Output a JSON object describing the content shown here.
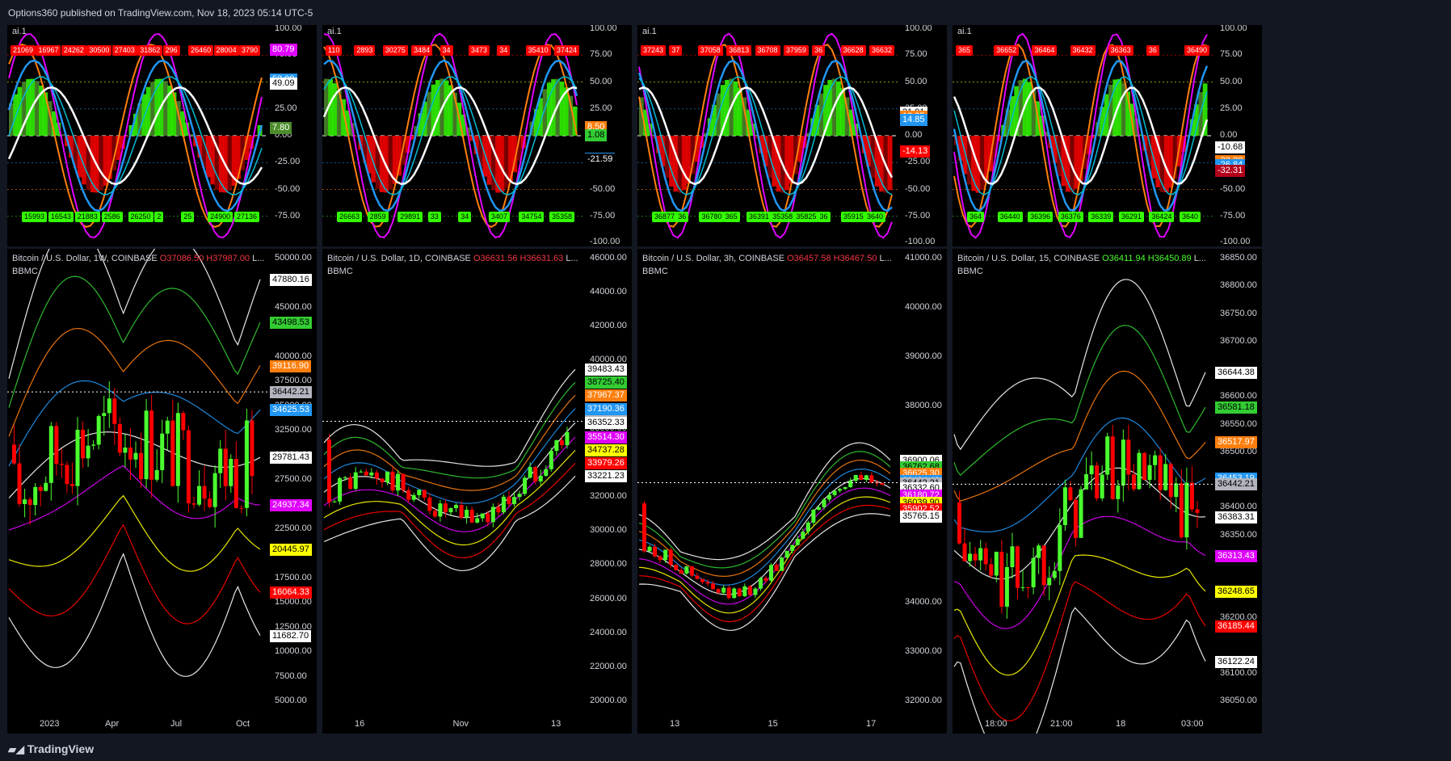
{
  "header": {
    "published": "Options360 published on TradingView.com, Nov 18, 2023 05:14 UTC-5"
  },
  "footer": {
    "logo": "TradingView"
  },
  "colors": {
    "bg": "#000000",
    "frame": "#131722",
    "up": "#4bff2e",
    "down": "#ff0000",
    "white": "#ffffff",
    "blue": "#2196f3",
    "orange": "#ff7f0e",
    "magenta": "#e000ff",
    "yellow": "#ffff00",
    "green": "#33cc33"
  },
  "panels": [
    {
      "osc_title": "ai.1",
      "sym": "Bitcoin / U.S. Dollar, 1W, COINBASE",
      "o": "O37086.50",
      "h": "H37987.00",
      "rest": "L...",
      "up": false,
      "indicator": "BBMC",
      "osc_axis": [
        "100.00",
        "75.00",
        "50.00",
        "25.00",
        "0.00",
        "-25.00",
        "-50.00",
        "-75.00"
      ],
      "osc_tags": [
        {
          "v": "80.79",
          "c": "#e000ff",
          "tc": "#fff"
        },
        {
          "v": "52.99",
          "c": "#2196f3",
          "tc": "#fff"
        },
        {
          "v": "49.09",
          "c": "#ffffff",
          "tc": "#000"
        },
        {
          "v": "7.80",
          "c": "#4c8c2b",
          "tc": "#fff"
        }
      ],
      "top_labels": [
        "21069",
        "16967",
        "24262",
        "30500",
        "27403",
        "31862",
        "296",
        "26460",
        "28004",
        "3790"
      ],
      "bot_labels": [
        "15993",
        "16543",
        "21883",
        "2586",
        "26250",
        "2",
        "25",
        "24900",
        "27136"
      ],
      "price_axis": [
        "50000.00",
        "45000.00",
        "40000.00",
        "37500.00",
        "35000.00",
        "32500.00",
        "30000.00",
        "27500.00",
        "25000.00",
        "22500.00",
        "20000.00",
        "17500.00",
        "15000.00",
        "12500.00",
        "10000.00",
        "7500.00",
        "5000.00"
      ],
      "price_tags": [
        {
          "v": "47880.16",
          "c": "#ffffff",
          "tc": "#000"
        },
        {
          "v": "43498.53",
          "c": "#33cc33",
          "tc": "#000"
        },
        {
          "v": "39116.90",
          "c": "#ff7f0e",
          "tc": "#fff"
        },
        {
          "v": "36442.21",
          "c": "#b2b5be",
          "tc": "#000"
        },
        {
          "v": "34625.53",
          "c": "#2196f3",
          "tc": "#fff"
        },
        {
          "v": "29781.43",
          "c": "#ffffff",
          "tc": "#000"
        },
        {
          "v": "24937.34",
          "c": "#e000ff",
          "tc": "#fff"
        },
        {
          "v": "20445.97",
          "c": "#ffff00",
          "tc": "#000"
        },
        {
          "v": "16064.33",
          "c": "#ff0000",
          "tc": "#fff"
        },
        {
          "v": "11682.70",
          "c": "#ffffff",
          "tc": "#000"
        }
      ],
      "x_axis": [
        "2023",
        "Apr",
        "Jul",
        "Oct"
      ]
    },
    {
      "osc_title": "ai.1",
      "sym": "Bitcoin / U.S. Dollar, 1D, COINBASE",
      "o": "O36631.56",
      "h": "H36631.63",
      "rest": "L...",
      "up": false,
      "indicator": "BBMC",
      "osc_axis": [
        "100.00",
        "75.00",
        "50.00",
        "25.00",
        "0.00",
        "-25.00",
        "-50.00",
        "-75.00",
        "-100.00"
      ],
      "osc_tags": [
        {
          "v": "8.50",
          "c": "#ff7f0e",
          "tc": "#fff"
        },
        {
          "v": "1.08",
          "c": "#33cc33",
          "tc": "#000"
        },
        {
          "v": "-21.05",
          "c": "#2196f3",
          "tc": "#fff"
        },
        {
          "v": "-21.59",
          "c": "#000000",
          "tc": "#fff"
        }
      ],
      "top_labels": [
        "110",
        "2893",
        "30275",
        "3484",
        "34",
        "3473",
        "34",
        "35410",
        "37424"
      ],
      "bot_labels": [
        "26663",
        "2859",
        "29891",
        "33",
        "34",
        "3407",
        "34754",
        "35358"
      ],
      "price_axis": [
        "46000.00",
        "44000.00",
        "42000.00",
        "40000.00",
        "38000.00",
        "36000.00",
        "32000.00",
        "30000.00",
        "28000.00",
        "26000.00",
        "24000.00",
        "22000.00",
        "20000.00"
      ],
      "price_tags": [
        {
          "v": "39483.43",
          "c": "#ffffff",
          "tc": "#000"
        },
        {
          "v": "38725.40",
          "c": "#33cc33",
          "tc": "#000"
        },
        {
          "v": "37967.37",
          "c": "#ff7f0e",
          "tc": "#fff"
        },
        {
          "v": "37190.36",
          "c": "#2196f3",
          "tc": "#fff"
        },
        {
          "v": "36442.21",
          "c": "#b2b5be",
          "tc": "#000"
        },
        {
          "v": "36352.33",
          "c": "#ffffff",
          "tc": "#000"
        },
        {
          "v": "35514.30",
          "c": "#e000ff",
          "tc": "#fff"
        },
        {
          "v": "34737.28",
          "c": "#ffff00",
          "tc": "#000"
        },
        {
          "v": "33979.26",
          "c": "#ff0000",
          "tc": "#fff"
        },
        {
          "v": "33221.23",
          "c": "#ffffff",
          "tc": "#000"
        }
      ],
      "x_axis": [
        "16",
        "Nov",
        "13"
      ]
    },
    {
      "osc_title": "ai.1",
      "sym": "Bitcoin / U.S. Dollar, 3h, COINBASE",
      "o": "O36457.58",
      "h": "H36467.50",
      "rest": "L...",
      "up": false,
      "indicator": "BBMC",
      "osc_axis": [
        "100.00",
        "75.00",
        "50.00",
        "25.00",
        "0.00",
        "-25.00",
        "-50.00",
        "-75.00",
        "-100.00"
      ],
      "osc_tags": [
        {
          "v": "21.91",
          "c": "#ffffff",
          "tc": "#000"
        },
        {
          "v": "18.25",
          "c": "#ff7f0e",
          "tc": "#fff"
        },
        {
          "v": "14.85",
          "c": "#2196f3",
          "tc": "#fff"
        },
        {
          "v": "-14.13",
          "c": "#ff0000",
          "tc": "#fff"
        }
      ],
      "top_labels": [
        "37243",
        "37",
        "37058",
        "36813",
        "36708",
        "37959",
        "36",
        "36628",
        "36632"
      ],
      "bot_labels": [
        "36877",
        "36",
        "36780",
        "365",
        "36391",
        "35358",
        "35825",
        "36",
        "35915",
        "3640"
      ],
      "price_axis": [
        "41000.00",
        "40000.00",
        "39000.00",
        "38000.00",
        "34000.00",
        "33000.00",
        "32000.00"
      ],
      "price_tags": [
        {
          "v": "36900.06",
          "c": "#ffffff",
          "tc": "#000"
        },
        {
          "v": "36762.68",
          "c": "#33cc33",
          "tc": "#000"
        },
        {
          "v": "36625.30",
          "c": "#ff7f0e",
          "tc": "#fff"
        },
        {
          "v": "36484.48",
          "c": "#2196f3",
          "tc": "#fff"
        },
        {
          "v": "36442.21",
          "c": "#b2b5be",
          "tc": "#000"
        },
        {
          "v": "36332.60",
          "c": "#ffffff",
          "tc": "#000"
        },
        {
          "v": "36180.72",
          "c": "#e000ff",
          "tc": "#fff"
        },
        {
          "v": "36039.90",
          "c": "#ffff00",
          "tc": "#000"
        },
        {
          "v": "35902.52",
          "c": "#ff0000",
          "tc": "#fff"
        },
        {
          "v": "35765.15",
          "c": "#ffffff",
          "tc": "#000"
        }
      ],
      "x_axis": [
        "13",
        "15",
        "17"
      ]
    },
    {
      "osc_title": "ai.1",
      "sym": "Bitcoin / U.S. Dollar, 15, COINBASE",
      "o": "O36411.94",
      "h": "H36450.89",
      "rest": "L...",
      "up": true,
      "indicator": "BBMC",
      "osc_axis": [
        "100.00",
        "75.00",
        "50.00",
        "25.00",
        "0.00",
        "-25.00",
        "-50.00",
        "-75.00",
        "-100.00"
      ],
      "osc_tags": [
        {
          "v": "-10.68",
          "c": "#ffffff",
          "tc": "#000"
        },
        {
          "v": "-23.20",
          "c": "#ff7f0e",
          "tc": "#fff"
        },
        {
          "v": "-26.84",
          "c": "#2196f3",
          "tc": "#fff"
        },
        {
          "v": "-32.31",
          "c": "#b3001b",
          "tc": "#fff"
        }
      ],
      "top_labels": [
        "365",
        "36652",
        "36464",
        "36432",
        "36363",
        "36",
        "36490"
      ],
      "bot_labels": [
        "364",
        "36440",
        "36396",
        "36376",
        "36339",
        "36291",
        "36424",
        "3640"
      ],
      "price_axis": [
        "36850.00",
        "36800.00",
        "36750.00",
        "36700.00",
        "36600.00",
        "36550.00",
        "36500.00",
        "36400.00",
        "36350.00",
        "36200.00",
        "36100.00",
        "36050.00"
      ],
      "price_tags": [
        {
          "v": "36644.38",
          "c": "#ffffff",
          "tc": "#000"
        },
        {
          "v": "36581.18",
          "c": "#33cc33",
          "tc": "#000"
        },
        {
          "v": "36517.97",
          "c": "#ff7f0e",
          "tc": "#fff"
        },
        {
          "v": "36453.19",
          "c": "#2196f3",
          "tc": "#fff"
        },
        {
          "v": "36442.21",
          "c": "#b2b5be",
          "tc": "#000"
        },
        {
          "v": "36383.31",
          "c": "#ffffff",
          "tc": "#000"
        },
        {
          "v": "36313.43",
          "c": "#e000ff",
          "tc": "#fff"
        },
        {
          "v": "36248.65",
          "c": "#ffff00",
          "tc": "#000"
        },
        {
          "v": "36185.44",
          "c": "#ff0000",
          "tc": "#fff"
        },
        {
          "v": "36122.24",
          "c": "#ffffff",
          "tc": "#000"
        }
      ],
      "x_axis": [
        "18:00",
        "21:00",
        "18",
        "03:00"
      ]
    }
  ]
}
